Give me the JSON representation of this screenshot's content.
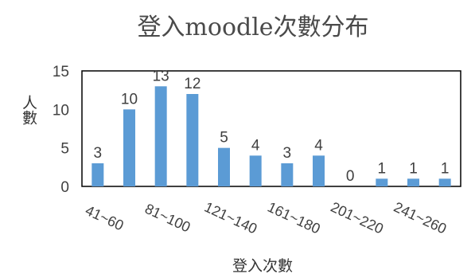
{
  "chart_data": {
    "type": "bar",
    "title": "登入moodle次數分布",
    "xlabel": "登入次數",
    "ylabel": "人數",
    "ylim": [
      0,
      15
    ],
    "yticks": [
      0,
      5,
      10,
      15
    ],
    "categories": [
      "41~60",
      "61~80",
      "81~100",
      "101~120",
      "121~140",
      "141~160",
      "161~180",
      "181~200",
      "201~220",
      "221~240",
      "241~260",
      "261~280"
    ],
    "shown_category_labels": [
      "41~60",
      "81~100",
      "121~140",
      "161~180",
      "201~220",
      "241~260"
    ],
    "values": [
      3,
      10,
      13,
      12,
      5,
      4,
      3,
      4,
      0,
      1,
      1,
      1
    ],
    "bar_color": "#5b9bd5",
    "grid": false
  }
}
